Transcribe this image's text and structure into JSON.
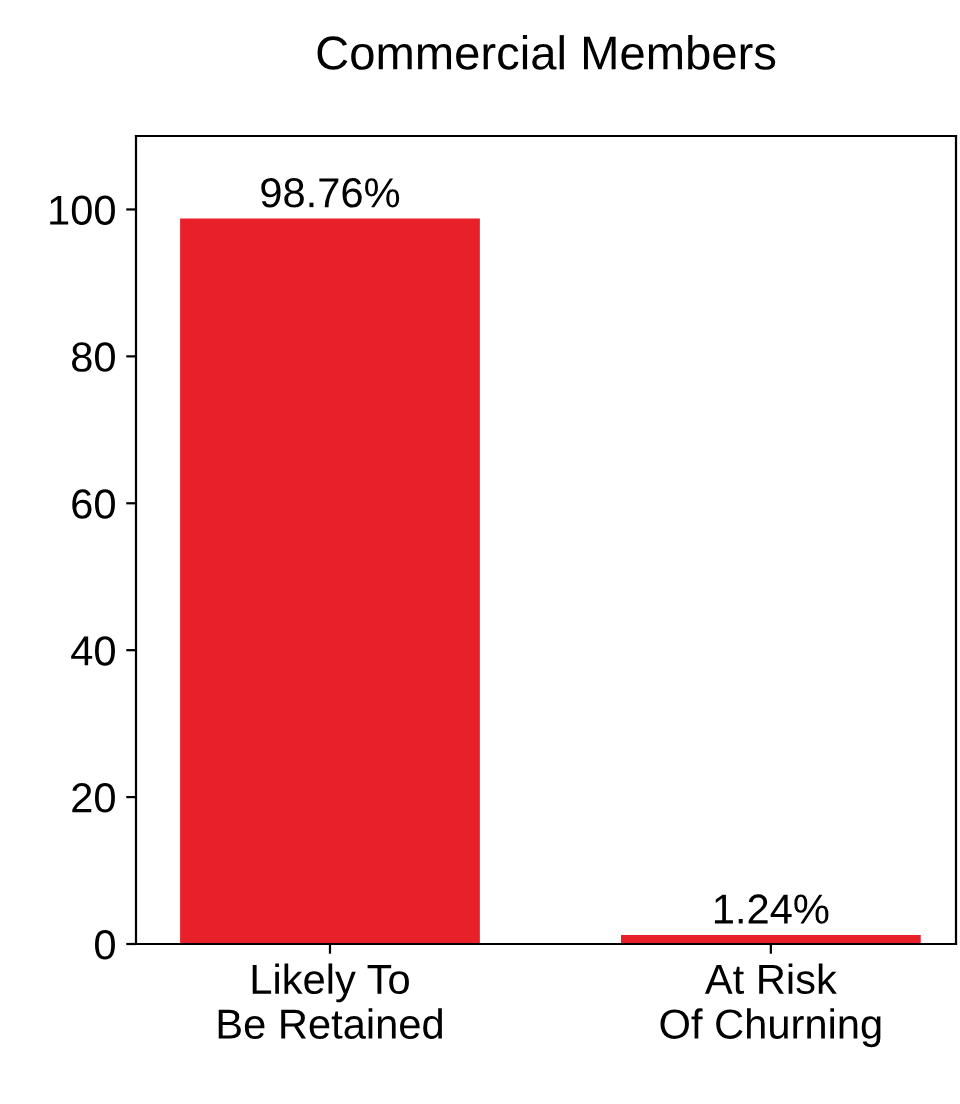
{
  "chart_data": {
    "type": "bar",
    "title": "Commercial Members",
    "categories": [
      "Likely To\nBe Retained",
      "At Risk\nOf Churning"
    ],
    "values": [
      98.76,
      1.24
    ],
    "value_labels": [
      "98.76%",
      "1.24%"
    ],
    "color": "#e8202a",
    "ylim": [
      0,
      110
    ],
    "yticks": [
      0,
      20,
      40,
      60,
      80,
      100
    ],
    "grid": false,
    "legend": false
  }
}
